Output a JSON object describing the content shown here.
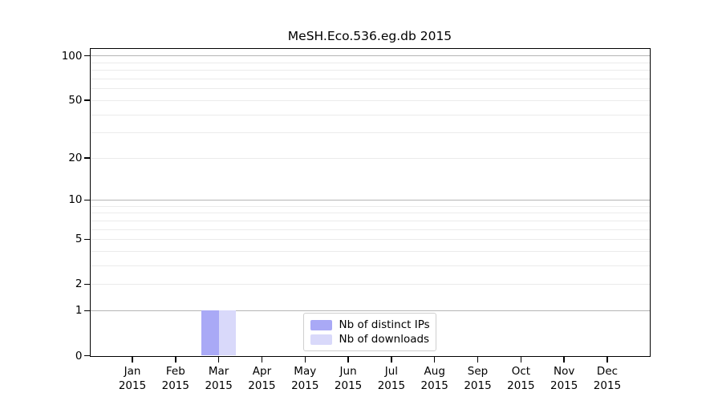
{
  "chart_data": {
    "type": "bar",
    "title": "MeSH.Eco.536.eg.db 2015",
    "categories": [
      "Jan 2015",
      "Feb 2015",
      "Mar 2015",
      "Apr 2015",
      "May 2015",
      "Jun 2015",
      "Jul 2015",
      "Aug 2015",
      "Sep 2015",
      "Oct 2015",
      "Nov 2015",
      "Dec 2015"
    ],
    "series": [
      {
        "name": "Nb of distinct IPs",
        "color": "#a9a9f6",
        "values": [
          0,
          0,
          1,
          0,
          0,
          0,
          0,
          0,
          0,
          0,
          0,
          0
        ]
      },
      {
        "name": "Nb of downloads",
        "color": "#d9d9fa",
        "values": [
          0,
          0,
          1,
          0,
          0,
          0,
          0,
          0,
          0,
          0,
          0,
          0
        ]
      }
    ],
    "xlabel": "",
    "ylabel": "",
    "yscale": "log1p",
    "ylim": [
      0,
      112
    ],
    "ytick_values": [
      100,
      50,
      20,
      10,
      5,
      2,
      1,
      0
    ],
    "grid": true,
    "grid_major": [
      1,
      10,
      100
    ],
    "grid_minor": [
      2,
      3,
      4,
      5,
      6,
      7,
      8,
      9,
      20,
      30,
      40,
      50,
      60,
      70,
      80,
      90
    ],
    "legend_position": "lower center"
  }
}
